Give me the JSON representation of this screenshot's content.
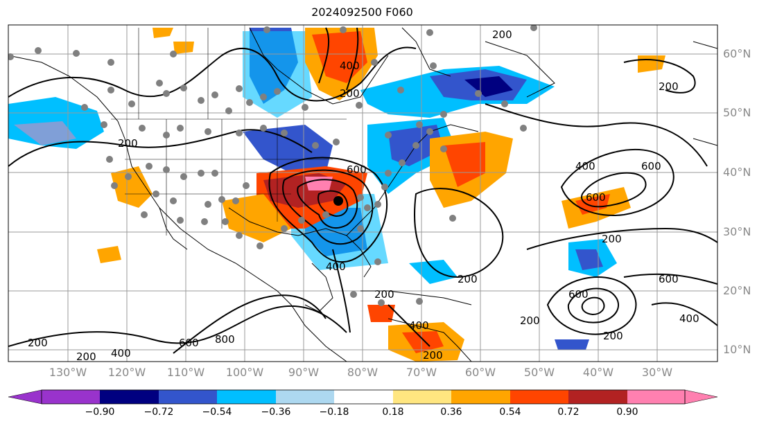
{
  "title": "2024092500 F060",
  "lat_labels": [
    "60°N",
    "50°N",
    "40°N",
    "30°N",
    "20°N",
    "10°N"
  ],
  "lon_labels": [
    "130°W",
    "120°W",
    "110°W",
    "100°W",
    "90°W",
    "80°W",
    "70°W",
    "60°W",
    "50°W",
    "40°W",
    "30°W"
  ],
  "colorbar": {
    "ticks": [
      "−0.90",
      "−0.72",
      "−0.54",
      "−0.36",
      "−0.18",
      "0.18",
      "0.36",
      "0.54",
      "0.72",
      "0.90"
    ],
    "colors": [
      "#9933cc",
      "#000080",
      "#3355cc",
      "#00bfff",
      "#add8f0",
      "#ffffff",
      "#ffe680",
      "#ffa500",
      "#ff4500",
      "#b22222",
      "#ff80b0"
    ]
  },
  "contour_labels": [
    "200",
    "400",
    "600",
    "800"
  ],
  "map": {
    "lat_range": [
      8,
      65
    ],
    "lon_range": [
      -140,
      -20
    ],
    "grid": true
  }
}
